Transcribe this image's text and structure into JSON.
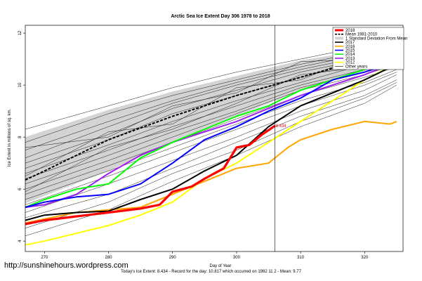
{
  "url_text": "http://sunshinehours.wordpress.com",
  "footer_text": "Today's Ice Extent: 8.434  - Record for the day: 10.817 which occurred on 1982 11 2  - Mean: 9.77",
  "colors": {
    "2018": "#ff0000",
    "mean": "#000000",
    "std_band": "#d3d3d3",
    "2017": "#000000",
    "2016": "#ffa500",
    "2015": "#0000ff",
    "2014": "#00ff00",
    "2013": "#a020f0",
    "2012": "#ffff00",
    "other_years": "#000000"
  },
  "chart_data": {
    "type": "line",
    "title": "Arctic Sea Ice Extent Day 306 1978 to 2018",
    "xlabel": "Day of Year",
    "ylabel": "Ice Extent in millions of sq. km.",
    "xlim": [
      267,
      326
    ],
    "ylim": [
      3.6,
      12.3
    ],
    "x_ticks": [
      270,
      280,
      290,
      300,
      310,
      320
    ],
    "y_ticks": [
      4,
      6,
      8,
      10,
      12
    ],
    "reference_line_x": 306,
    "point_label": "8.434",
    "legend": [
      "2018",
      "Mean 1981-2010",
      "1 Standard Deviation From Mean",
      "2017",
      "2016",
      "2015",
      "2014",
      "2013",
      "2012",
      "Other years"
    ],
    "legend_position": "top-right",
    "std_band": {
      "x": [
        267,
        280,
        290,
        300,
        310,
        320,
        325
      ],
      "upper": [
        8.0,
        9.05,
        9.75,
        10.35,
        10.95,
        11.35,
        11.6
      ],
      "lower": [
        5.45,
        6.7,
        7.8,
        8.8,
        9.8,
        10.55,
        10.9
      ]
    },
    "series": [
      {
        "name": "Mean 1981-2010",
        "x": [
          267,
          270,
          275,
          280,
          285,
          290,
          295,
          300,
          305,
          310,
          315,
          320,
          325
        ],
        "y": [
          6.35,
          6.7,
          7.3,
          7.9,
          8.35,
          8.8,
          9.2,
          9.6,
          9.95,
          10.3,
          10.65,
          10.95,
          11.25
        ]
      },
      {
        "name": "2018",
        "x": [
          267,
          270,
          275,
          280,
          285,
          288,
          290,
          293,
          295,
          298,
          300,
          302,
          304,
          306
        ],
        "y": [
          4.65,
          4.8,
          4.95,
          5.1,
          5.25,
          5.4,
          5.9,
          6.1,
          6.4,
          6.8,
          7.6,
          7.7,
          8.1,
          8.434
        ]
      },
      {
        "name": "2017",
        "x": [
          267,
          270,
          275,
          280,
          285,
          290,
          295,
          300,
          305,
          310,
          315,
          320,
          325
        ],
        "y": [
          4.8,
          5.0,
          5.1,
          5.15,
          5.6,
          6.0,
          6.7,
          7.3,
          8.4,
          9.2,
          9.7,
          10.2,
          10.8
        ]
      },
      {
        "name": "2016",
        "x": [
          267,
          270,
          275,
          280,
          285,
          290,
          295,
          300,
          305,
          308,
          310,
          315,
          320,
          324,
          325
        ],
        "y": [
          4.7,
          4.85,
          5.1,
          5.2,
          5.3,
          5.8,
          6.3,
          6.8,
          7.0,
          7.6,
          7.9,
          8.3,
          8.6,
          8.5,
          8.6
        ]
      },
      {
        "name": "2015",
        "x": [
          267,
          270,
          275,
          280,
          285,
          290,
          295,
          300,
          305,
          310,
          315,
          320,
          325
        ],
        "y": [
          5.3,
          5.5,
          5.7,
          5.8,
          6.2,
          7.0,
          7.9,
          8.4,
          9.0,
          9.5,
          10.2,
          10.5,
          10.9
        ]
      },
      {
        "name": "2014",
        "x": [
          267,
          270,
          275,
          280,
          285,
          290,
          295,
          300,
          305,
          310,
          315,
          320,
          325
        ],
        "y": [
          5.3,
          5.6,
          6.0,
          6.2,
          7.2,
          7.8,
          8.3,
          8.8,
          9.2,
          9.8,
          10.2,
          10.6,
          11.1
        ]
      },
      {
        "name": "2013",
        "x": [
          267,
          270,
          275,
          280,
          285,
          290,
          295,
          300,
          305,
          310,
          315,
          320,
          325
        ],
        "y": [
          5.3,
          5.4,
          5.8,
          6.6,
          7.3,
          7.8,
          8.2,
          8.6,
          9.1,
          9.6,
          10.0,
          10.4,
          10.9
        ]
      },
      {
        "name": "2012",
        "x": [
          267,
          270,
          275,
          280,
          285,
          290,
          295,
          300,
          305,
          310,
          315,
          320,
          325
        ],
        "y": [
          3.85,
          4.0,
          4.3,
          4.6,
          5.0,
          5.5,
          6.4,
          7.0,
          7.8,
          8.6,
          9.4,
          10.2,
          10.85
        ]
      }
    ],
    "other_years": [
      {
        "x": [
          267,
          280,
          290,
          300,
          310,
          320,
          325
        ],
        "y": [
          8.3,
          9.2,
          9.9,
          10.5,
          11.0,
          11.5,
          11.8
        ]
      },
      {
        "x": [
          267,
          280,
          290,
          300,
          310,
          320,
          325
        ],
        "y": [
          7.8,
          8.9,
          9.6,
          10.2,
          10.8,
          11.3,
          11.6
        ]
      },
      {
        "x": [
          267,
          280,
          290,
          300,
          310,
          320,
          325
        ],
        "y": [
          7.5,
          8.6,
          9.4,
          10.1,
          10.7,
          11.2,
          11.5
        ]
      },
      {
        "x": [
          267,
          280,
          290,
          300,
          310,
          320,
          325
        ],
        "y": [
          7.2,
          8.4,
          9.3,
          10.0,
          10.6,
          11.1,
          11.4
        ]
      },
      {
        "x": [
          267,
          280,
          290,
          300,
          310,
          320,
          325
        ],
        "y": [
          7.0,
          8.1,
          9.1,
          9.8,
          10.5,
          11.0,
          11.3
        ]
      },
      {
        "x": [
          267,
          280,
          290,
          300,
          310,
          320,
          325
        ],
        "y": [
          6.8,
          7.9,
          8.9,
          9.6,
          10.3,
          10.9,
          11.2
        ]
      },
      {
        "x": [
          267,
          280,
          290,
          300,
          310,
          320,
          325
        ],
        "y": [
          6.6,
          7.7,
          8.6,
          9.4,
          10.1,
          10.8,
          11.1
        ]
      },
      {
        "x": [
          267,
          280,
          290,
          300,
          310,
          320,
          325
        ],
        "y": [
          6.4,
          7.5,
          8.4,
          9.2,
          10.0,
          10.6,
          11.0
        ]
      },
      {
        "x": [
          267,
          280,
          290,
          300,
          310,
          320,
          325
        ],
        "y": [
          6.2,
          7.3,
          8.2,
          9.0,
          9.9,
          10.5,
          10.9
        ]
      },
      {
        "x": [
          267,
          280,
          290,
          300,
          310,
          320,
          325
        ],
        "y": [
          6.0,
          7.1,
          8.0,
          8.9,
          9.8,
          10.4,
          10.8
        ]
      },
      {
        "x": [
          267,
          280,
          290,
          300,
          310,
          320,
          325
        ],
        "y": [
          5.8,
          6.9,
          7.8,
          8.7,
          9.6,
          10.3,
          10.7
        ]
      },
      {
        "x": [
          267,
          280,
          290,
          300,
          310,
          320,
          325
        ],
        "y": [
          5.6,
          6.7,
          7.6,
          8.5,
          9.4,
          10.1,
          10.6
        ]
      },
      {
        "x": [
          267,
          280,
          290,
          300,
          310,
          320,
          325
        ],
        "y": [
          5.4,
          6.5,
          7.4,
          8.3,
          9.2,
          10.0,
          10.5
        ]
      },
      {
        "x": [
          267,
          280,
          290,
          300,
          310,
          320,
          325
        ],
        "y": [
          5.1,
          6.2,
          7.1,
          8.0,
          9.0,
          9.8,
          10.4
        ]
      },
      {
        "x": [
          267,
          280,
          290,
          300,
          310,
          320,
          325
        ],
        "y": [
          4.9,
          5.8,
          6.8,
          7.8,
          8.8,
          9.6,
          10.2
        ]
      },
      {
        "x": [
          267,
          280,
          290,
          300,
          310,
          320,
          325
        ],
        "y": [
          4.5,
          5.5,
          6.6,
          7.5,
          8.6,
          9.5,
          10.1
        ]
      },
      {
        "x": [
          267,
          280,
          290,
          300,
          310,
          320,
          325
        ],
        "y": [
          4.2,
          5.2,
          6.3,
          7.3,
          8.4,
          9.3,
          10.0
        ]
      },
      {
        "x": [
          267,
          280,
          290,
          300,
          310,
          320,
          325
        ],
        "y": [
          7.6,
          8.0,
          9.2,
          9.7,
          10.9,
          11.0,
          11.7
        ]
      },
      {
        "x": [
          267,
          280,
          290,
          300,
          310,
          320,
          325
        ],
        "y": [
          6.5,
          8.2,
          8.5,
          9.9,
          10.2,
          11.2,
          11.1
        ]
      },
      {
        "x": [
          267,
          280,
          290,
          300,
          310,
          320,
          325
        ],
        "y": [
          5.9,
          7.6,
          8.3,
          9.3,
          10.4,
          10.7,
          11.3
        ]
      }
    ]
  }
}
